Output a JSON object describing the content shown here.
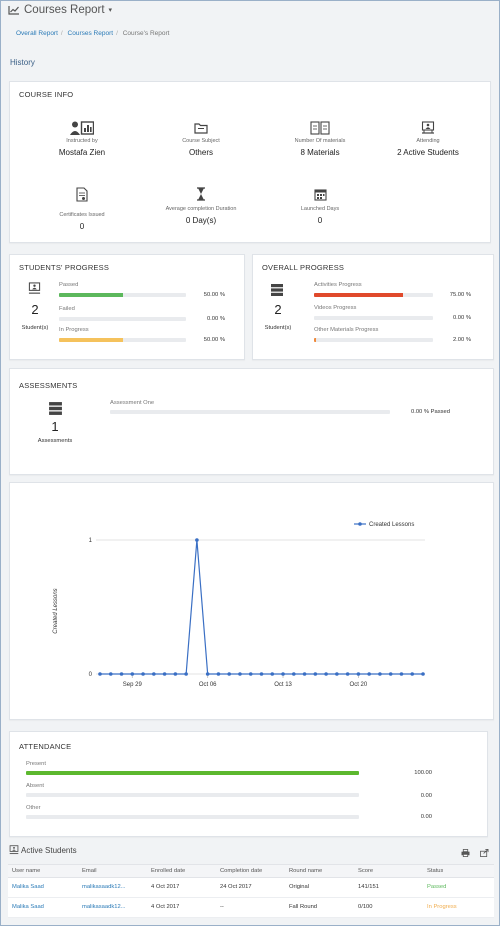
{
  "header": {
    "title": "Courses Report"
  },
  "breadcrumb": [
    "Overall Report",
    "Courses Report",
    "Course's Report"
  ],
  "history_label": "History",
  "course_info": {
    "title": "COURSE INFO",
    "items": [
      {
        "icon": "instructor-icon",
        "label": "Instructed by",
        "value": "Mostafa Zien"
      },
      {
        "icon": "folder-icon",
        "label": "Course Subject",
        "value": "Others"
      },
      {
        "icon": "book-icon",
        "label": "Number Of materials",
        "value": "8 Materials"
      },
      {
        "icon": "presentation-icon",
        "label": "Attending",
        "value": "2 Active Students"
      },
      {
        "icon": "certificate-icon",
        "label": "Certificates Issued",
        "value": "0"
      },
      {
        "icon": "hourglass-icon",
        "label": "Average completion Duration",
        "value": "0 Day(s)"
      },
      {
        "icon": "calendar-icon",
        "label": "Launched Days",
        "value": "0"
      }
    ]
  },
  "students_progress": {
    "title": "STUDENTS' PROGRESS",
    "count": "2",
    "count_label": "Student(s)",
    "bars": [
      {
        "label": "Passed",
        "value": "50.00 %",
        "fraction": 0.5,
        "color": "#5cb85c"
      },
      {
        "label": "Failed",
        "value": "0.00 %",
        "fraction": 0,
        "color": "#d9534f"
      },
      {
        "label": "In Progress",
        "value": "50.00 %",
        "fraction": 0.5,
        "color": "#f5c25c"
      }
    ]
  },
  "overall_progress": {
    "title": "OVERALL PROGRESS",
    "count": "2",
    "count_label": "Student(s)",
    "bars": [
      {
        "label": "Activities Progress",
        "value": "75.00 %",
        "fraction": 0.75,
        "color": "#e0492b"
      },
      {
        "label": "Videos Progress",
        "value": "0.00 %",
        "fraction": 0,
        "color": "#e0492b"
      },
      {
        "label": "Other Materials Progress",
        "value": "2.00 %",
        "fraction": 0.02,
        "color": "#f08a3c"
      }
    ]
  },
  "assessments": {
    "title": "ASSESSMENTS",
    "count": "1",
    "count_label": "Assessments",
    "items": [
      {
        "label": "Assessment One",
        "value": "0.00 % Passed",
        "fraction": 0
      }
    ]
  },
  "chart_data": {
    "type": "line",
    "title": "",
    "ylabel": "Created Lessons",
    "xlabel": "",
    "legend": "Created Lessons",
    "legend_position": "top-right",
    "x_tick_labels": [
      "Sep 29",
      "Oct 06",
      "Oct 13",
      "Oct 20"
    ],
    "y_tick_labels": [
      "0",
      "1"
    ],
    "ylim": [
      0,
      1
    ],
    "series": [
      {
        "name": "Created Lessons",
        "color": "#3a6fc4",
        "values": [
          0,
          0,
          0,
          0,
          0,
          0,
          0,
          0,
          0,
          1,
          0,
          0,
          0,
          0,
          0,
          0,
          0,
          0,
          0,
          0,
          0,
          0,
          0,
          0,
          0,
          0,
          0,
          0,
          0,
          0,
          0
        ]
      }
    ]
  },
  "attendance": {
    "title": "ATTENDANCE",
    "bars": [
      {
        "label": "Present",
        "value": "100.00",
        "fraction": 1,
        "color": "#5cb82e"
      },
      {
        "label": "Absent",
        "value": "0.00",
        "fraction": 0,
        "color": "#d9534f"
      },
      {
        "label": "Other",
        "value": "0.00",
        "fraction": 0,
        "color": "#aaa"
      }
    ]
  },
  "active_students": {
    "title": "Active Students",
    "columns": [
      "User name",
      "Email",
      "Enrolled date",
      "Completion date",
      "Round name",
      "Score",
      "Status"
    ],
    "rows": [
      {
        "user": "Malika Saad",
        "email": "malikasaadk12...",
        "enrolled": "4 Oct 2017",
        "completion": "24 Oct 2017",
        "round": "Original",
        "score": "141/151",
        "status": "Passed",
        "status_color": "#5cb85c"
      },
      {
        "user": "Malika Saad",
        "email": "malikasaadk12...",
        "enrolled": "4 Oct 2017",
        "completion": "--",
        "round": "Fall Round",
        "score": "0/100",
        "status": "In Progress",
        "status_color": "#f0ad4e"
      }
    ]
  }
}
